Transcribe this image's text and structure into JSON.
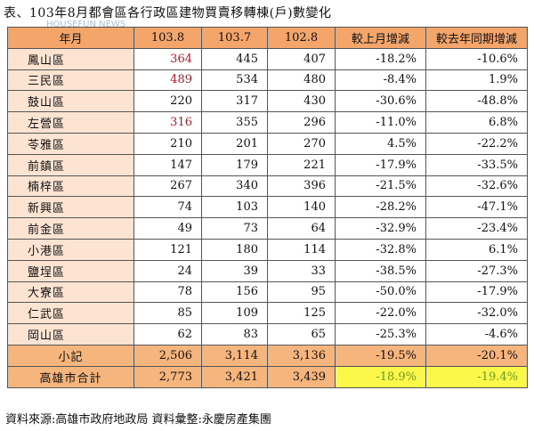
{
  "title": "表、103年8月都會區各行政區建物買賣移轉棟(戶)數變化",
  "watermark": "HOUSEFUN NEWS",
  "columns": [
    "年月",
    "103.8",
    "103.7",
    "102.8",
    "較上月增減",
    "較去年同期增減"
  ],
  "rows": [
    {
      "name": "鳳山區",
      "c1": "364",
      "c2": "445",
      "c3": "407",
      "mom": "-18.2%",
      "yoy": "-10.6%",
      "red": true
    },
    {
      "name": "三民區",
      "c1": "489",
      "c2": "534",
      "c3": "480",
      "mom": "-8.4%",
      "yoy": "1.9%",
      "red": true
    },
    {
      "name": "鼓山區",
      "c1": "220",
      "c2": "317",
      "c3": "430",
      "mom": "-30.6%",
      "yoy": "-48.8%",
      "red": false
    },
    {
      "name": "左營區",
      "c1": "316",
      "c2": "355",
      "c3": "296",
      "mom": "-11.0%",
      "yoy": "6.8%",
      "red": true
    },
    {
      "name": "苓雅區",
      "c1": "210",
      "c2": "201",
      "c3": "270",
      "mom": "4.5%",
      "yoy": "-22.2%",
      "red": false
    },
    {
      "name": "前鎮區",
      "c1": "147",
      "c2": "179",
      "c3": "221",
      "mom": "-17.9%",
      "yoy": "-33.5%",
      "red": false
    },
    {
      "name": "楠梓區",
      "c1": "267",
      "c2": "340",
      "c3": "396",
      "mom": "-21.5%",
      "yoy": "-32.6%",
      "red": false
    },
    {
      "name": "新興區",
      "c1": "74",
      "c2": "103",
      "c3": "140",
      "mom": "-28.2%",
      "yoy": "-47.1%",
      "red": false
    },
    {
      "name": "前金區",
      "c1": "49",
      "c2": "73",
      "c3": "64",
      "mom": "-32.9%",
      "yoy": "-23.4%",
      "red": false
    },
    {
      "name": "小港區",
      "c1": "121",
      "c2": "180",
      "c3": "114",
      "mom": "-32.8%",
      "yoy": "6.1%",
      "red": false
    },
    {
      "name": "鹽埕區",
      "c1": "24",
      "c2": "39",
      "c3": "33",
      "mom": "-38.5%",
      "yoy": "-27.3%",
      "red": false
    },
    {
      "name": "大寮區",
      "c1": "78",
      "c2": "156",
      "c3": "95",
      "mom": "-50.0%",
      "yoy": "-17.9%",
      "red": false
    },
    {
      "name": "仁武區",
      "c1": "85",
      "c2": "109",
      "c3": "125",
      "mom": "-22.0%",
      "yoy": "-32.0%",
      "red": false
    },
    {
      "name": "岡山區",
      "c1": "62",
      "c2": "83",
      "c3": "65",
      "mom": "-25.3%",
      "yoy": "-4.6%",
      "red": false
    }
  ],
  "subtotal": {
    "name": "小記",
    "c1": "2,506",
    "c2": "3,114",
    "c3": "3,136",
    "mom": "-19.5%",
    "yoy": "-20.1%"
  },
  "total": {
    "name": "高雄市合計",
    "c1": "2,773",
    "c2": "3,421",
    "c3": "3,439",
    "mom": "-18.9%",
    "yoy": "-19.4%"
  },
  "footer": "資料來源:高雄市政府地政局 資料彙整:永慶房產集團",
  "colors": {
    "header": "#f3a56a",
    "district": "#fde4d2",
    "highlight": "#fcf84a",
    "red_text": "#b2182b",
    "green_text": "#6a9a2a"
  }
}
